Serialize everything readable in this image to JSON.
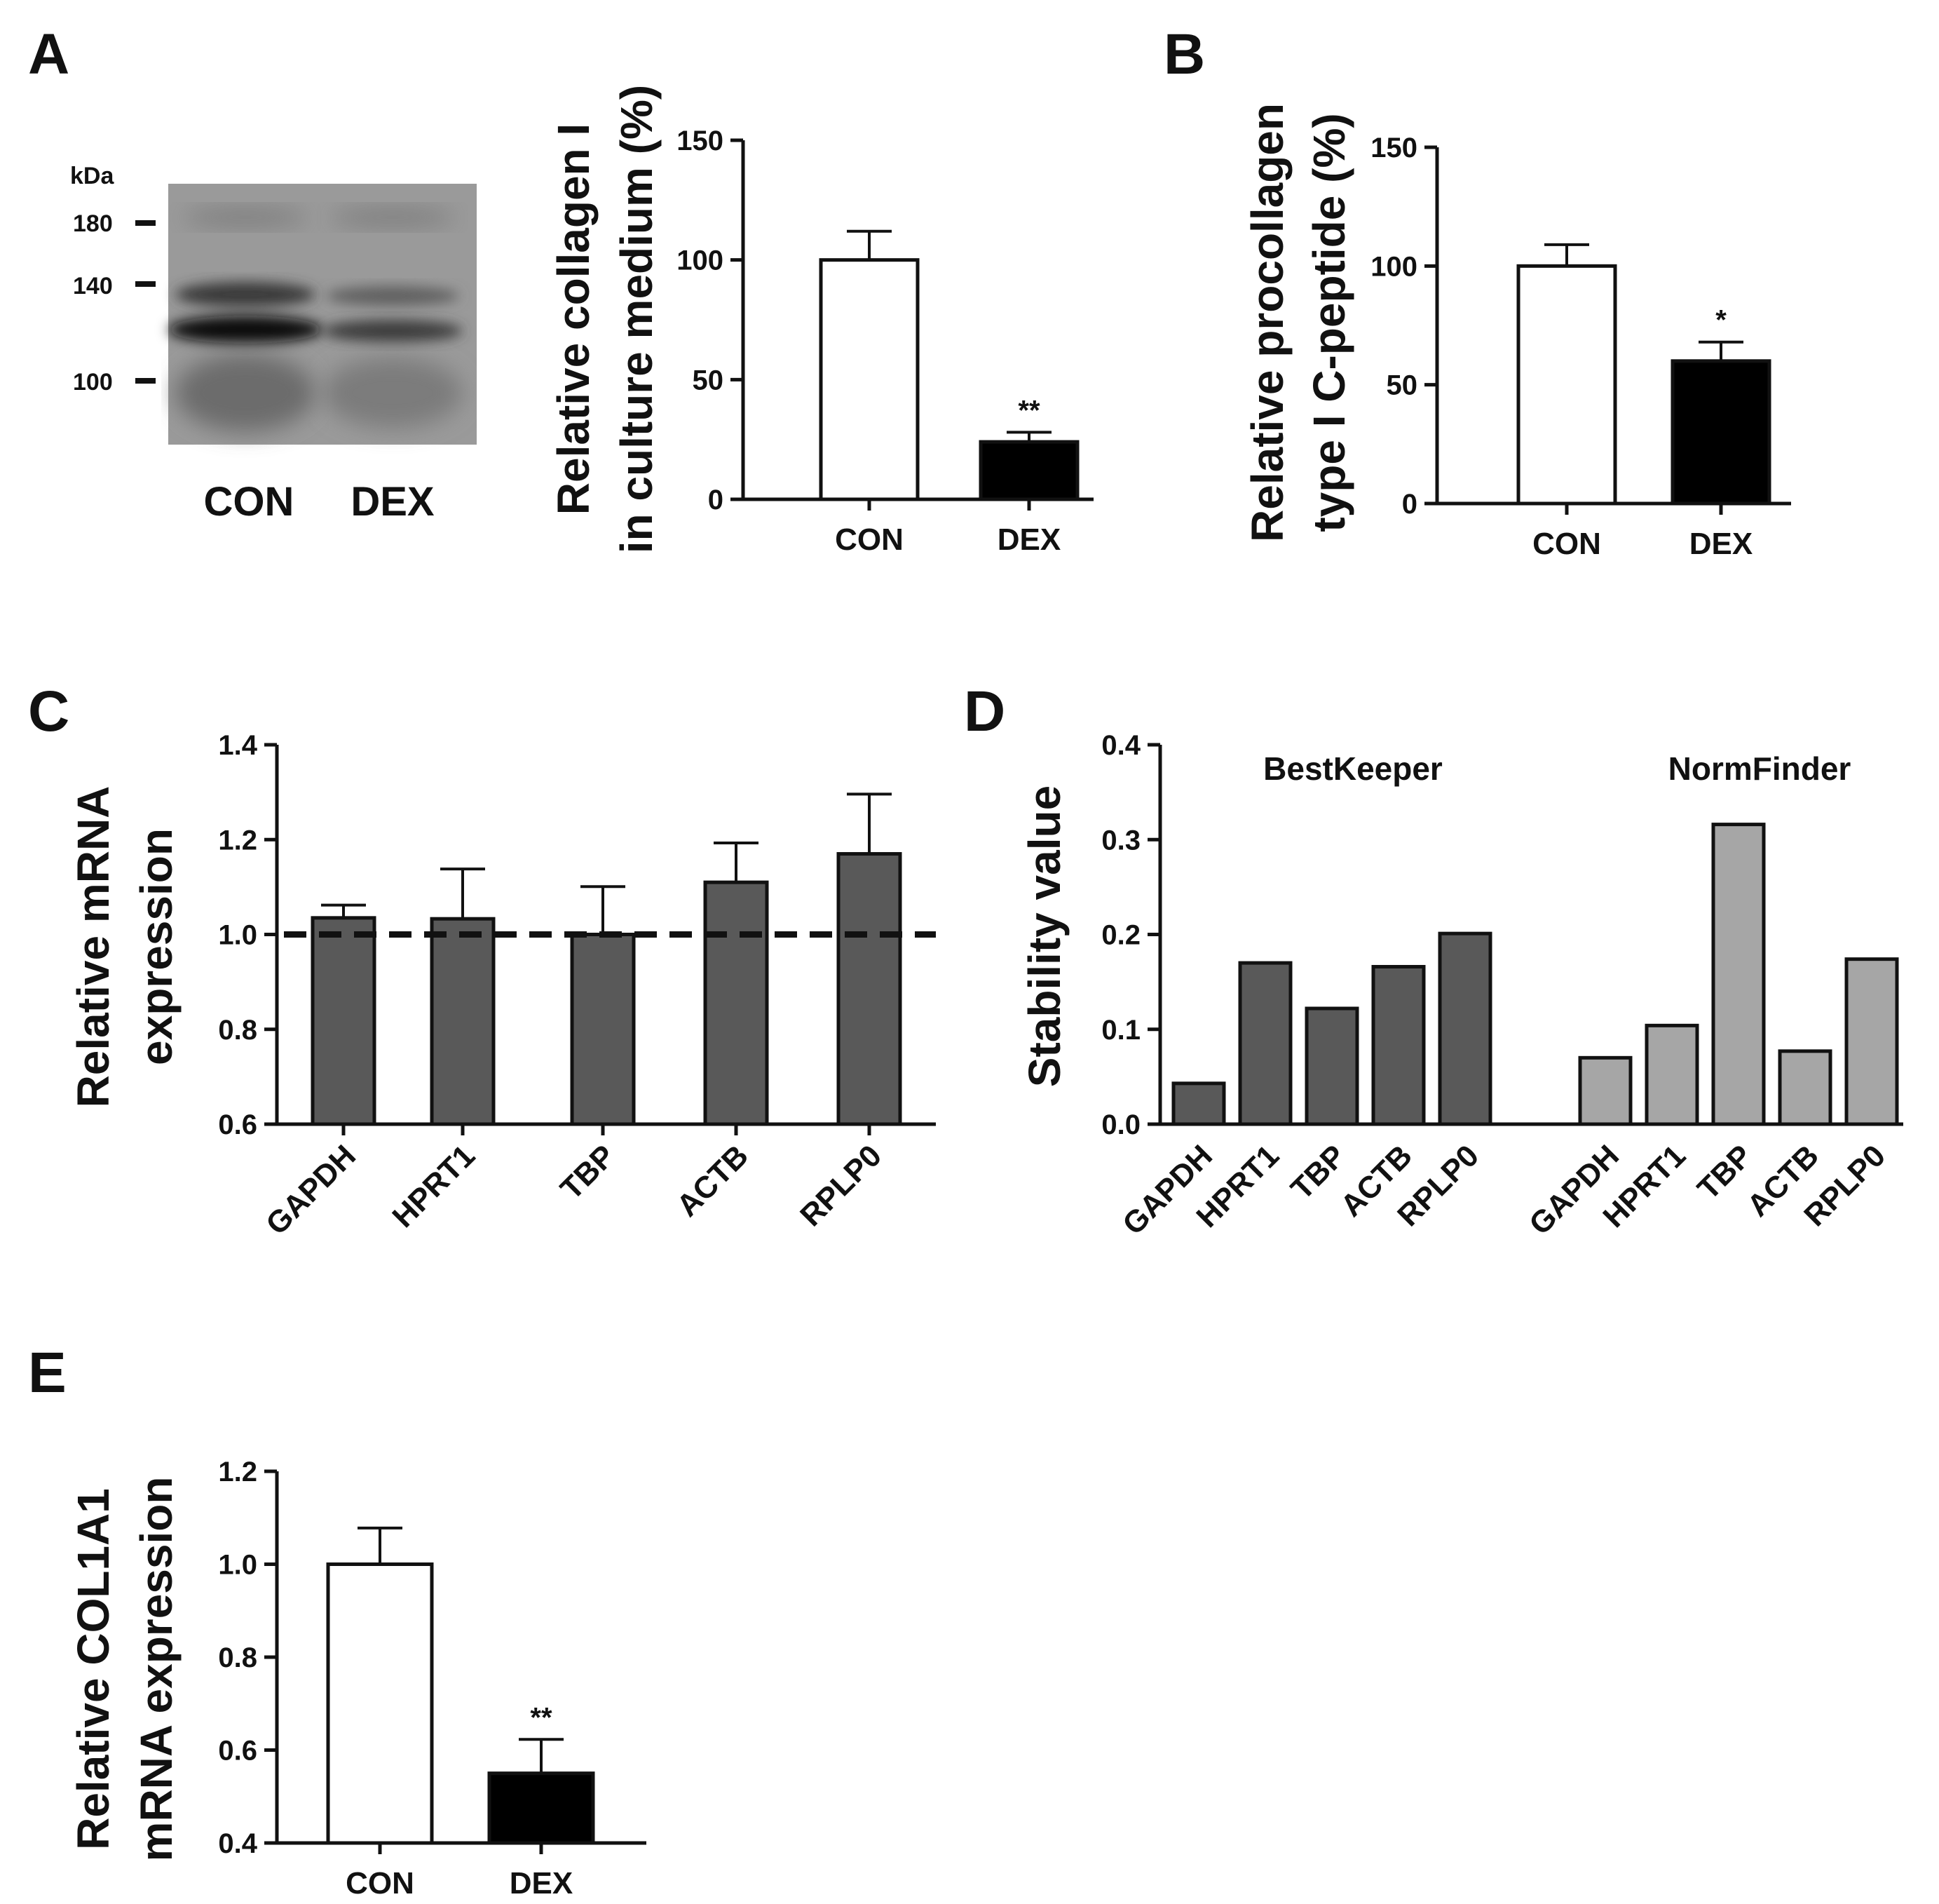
{
  "colors": {
    "con_fill": "#ffffff",
    "dex_fill": "#000000",
    "ref_bar_fill": "#595959",
    "bestkeeper_fill": "#595959",
    "normfinder_fill": "#a6a6a6",
    "axis": "#111111"
  },
  "blot": {
    "panel_label": "A",
    "unit_label": "kDa",
    "markers": [
      "180",
      "140",
      "100"
    ],
    "lane_labels": [
      "CON",
      "DEX"
    ]
  },
  "chart_data": [
    {
      "panel": "A",
      "type": "bar",
      "ylabel_lines": [
        "Relative collagen I",
        "in culture medium (%)"
      ],
      "categories": [
        "CON",
        "DEX"
      ],
      "values": [
        100,
        24
      ],
      "errors": [
        12,
        4
      ],
      "significance": [
        "",
        "**"
      ],
      "ylim": [
        0,
        150
      ],
      "yticks": [
        "0",
        "50",
        "100",
        "150"
      ]
    },
    {
      "panel": "B",
      "type": "bar",
      "ylabel_lines": [
        "Relative procollagen",
        "type I C-peptide (%)"
      ],
      "categories": [
        "CON",
        "DEX"
      ],
      "values": [
        100,
        60
      ],
      "errors": [
        9,
        8
      ],
      "significance": [
        "",
        "*"
      ],
      "ylim": [
        0,
        150
      ],
      "yticks": [
        "0",
        "50",
        "100",
        "150"
      ]
    },
    {
      "panel": "C",
      "type": "bar",
      "ylabel_lines": [
        "Relative mRNA",
        "expression"
      ],
      "categories": [
        "GAPDH",
        "HPRT1",
        "TBP",
        "ACTB",
        "RPLP0"
      ],
      "values": [
        1.035,
        1.033,
        1.0,
        1.11,
        1.17
      ],
      "errors": [
        0.027,
        0.105,
        0.101,
        0.083,
        0.126
      ],
      "reference_line": 1.0,
      "ylim": [
        0.6,
        1.4
      ],
      "yticks": [
        "0.6",
        "0.8",
        "1.0",
        "1.2",
        "1.4"
      ]
    },
    {
      "panel": "D",
      "type": "bar",
      "ylabel": "Stability value",
      "ylim": [
        0,
        0.4
      ],
      "yticks": [
        "0.0",
        "0.1",
        "0.2",
        "0.3",
        "0.4"
      ],
      "series": [
        {
          "name": "BestKeeper",
          "categories": [
            "GAPDH",
            "HPRT1",
            "TBP",
            "ACTB",
            "RPLP0"
          ],
          "values": [
            0.043,
            0.17,
            0.122,
            0.166,
            0.201
          ]
        },
        {
          "name": "NormFinder",
          "categories": [
            "GAPDH",
            "HPRT1",
            "TBP",
            "ACTB",
            "RPLP0"
          ],
          "values": [
            0.07,
            0.104,
            0.316,
            0.077,
            0.174
          ]
        }
      ]
    },
    {
      "panel": "E",
      "type": "bar",
      "ylabel_lines": [
        "Relative COL1A1",
        "mRNA expression"
      ],
      "categories": [
        "CON",
        "DEX"
      ],
      "values": [
        1.0,
        0.55
      ],
      "errors": [
        0.078,
        0.073
      ],
      "significance": [
        "",
        "**"
      ],
      "ylim": [
        0.4,
        1.2
      ],
      "yticks": [
        "0.4",
        "0.6",
        "0.8",
        "1.0",
        "1.2"
      ]
    }
  ]
}
